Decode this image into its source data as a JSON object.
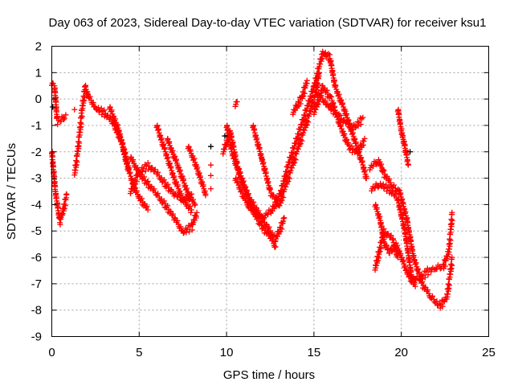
{
  "chart_data": {
    "type": "scatter",
    "title": "Day 063 of 2023, Sidereal Day-to-day VTEC variation (SDTVAR) for receiver ksu1",
    "xlabel": "GPS time / hours",
    "ylabel": "SDTVAR / TECUs",
    "xlim": [
      0,
      25
    ],
    "ylim": [
      -9,
      2
    ],
    "xticks": [
      "0",
      "5",
      "10",
      "15",
      "20",
      "25"
    ],
    "yticks": [
      "-9",
      "-8",
      "-7",
      "-6",
      "-5",
      "-4",
      "-3",
      "-2",
      "-1",
      "0",
      "1",
      "2"
    ],
    "grid": true,
    "marker": "+",
    "colors": {
      "main": "#ff0000",
      "secondary": "#000000"
    },
    "traces": [
      [
        [
          0,
          0.6
        ],
        [
          0.15,
          0.5
        ],
        [
          0.3,
          -0.8
        ],
        [
          0.5,
          -0.8
        ],
        [
          0.8,
          -0.6
        ]
      ],
      [
        [
          0,
          -2
        ],
        [
          0.2,
          -3.5
        ],
        [
          0.45,
          -4.6
        ],
        [
          0.6,
          -4.3
        ],
        [
          0.85,
          -3.6
        ]
      ],
      [
        [
          1.3,
          -2.8
        ],
        [
          1.5,
          -1.8
        ],
        [
          1.7,
          -0.5
        ],
        [
          1.9,
          0.5
        ],
        [
          2.1,
          0.1
        ]
      ],
      [
        [
          2.0,
          0.2
        ],
        [
          2.5,
          -0.3
        ],
        [
          3.0,
          -0.5
        ],
        [
          3.5,
          -0.9
        ],
        [
          4.0,
          -1.6
        ],
        [
          4.4,
          -2.6
        ]
      ],
      [
        [
          3.3,
          -0.3
        ],
        [
          3.8,
          -1.1
        ],
        [
          4.3,
          -2.5
        ],
        [
          4.8,
          -3.5
        ],
        [
          5.5,
          -4.2
        ]
      ],
      [
        [
          4.5,
          -2.2
        ],
        [
          5.0,
          -2.8
        ],
        [
          5.5,
          -3.2
        ],
        [
          6.0,
          -3.6
        ],
        [
          6.5,
          -4.0
        ],
        [
          7.0,
          -4.5
        ],
        [
          7.5,
          -5.0
        ],
        [
          8.0,
          -4.8
        ],
        [
          8.3,
          -4.3
        ]
      ],
      [
        [
          4.5,
          -3.5
        ],
        [
          5.0,
          -2.7
        ],
        [
          5.5,
          -2.5
        ],
        [
          6.0,
          -2.8
        ],
        [
          6.5,
          -3.2
        ],
        [
          7.0,
          -3.6
        ],
        [
          7.5,
          -3.8
        ],
        [
          8.0,
          -3.6
        ]
      ],
      [
        [
          6.0,
          -1.0
        ],
        [
          6.5,
          -2.0
        ],
        [
          7.0,
          -3.0
        ],
        [
          7.5,
          -3.8
        ],
        [
          8.0,
          -4.2
        ]
      ],
      [
        [
          6.6,
          -1.5
        ],
        [
          7.2,
          -2.5
        ],
        [
          7.8,
          -3.6
        ],
        [
          8.2,
          -4.0
        ]
      ],
      [
        [
          7.8,
          -1.8
        ],
        [
          8.2,
          -2.4
        ],
        [
          8.5,
          -3.0
        ],
        [
          8.8,
          -3.6
        ]
      ],
      [
        [
          10.0,
          -1.0
        ],
        [
          10.3,
          -2.0
        ],
        [
          10.8,
          -3.0
        ],
        [
          11.5,
          -4.2
        ],
        [
          12.0,
          -4.8
        ],
        [
          12.5,
          -5.2
        ],
        [
          12.8,
          -5.6
        ]
      ],
      [
        [
          9.8,
          -2.0
        ],
        [
          10.2,
          -1.2
        ],
        [
          10.6,
          -2.5
        ],
        [
          11.2,
          -3.6
        ],
        [
          12.0,
          -4.5
        ],
        [
          12.8,
          -5.3
        ],
        [
          13.3,
          -4.5
        ]
      ],
      [
        [
          10.5,
          -3.0
        ],
        [
          11.2,
          -4.0
        ],
        [
          12.0,
          -4.5
        ],
        [
          12.6,
          -4.2
        ],
        [
          13.1,
          -3.5
        ],
        [
          13.5,
          -2.5
        ],
        [
          14.0,
          -1.5
        ],
        [
          14.5,
          -0.5
        ],
        [
          15.0,
          0.5
        ]
      ],
      [
        [
          11.5,
          -1.0
        ],
        [
          12.0,
          -2.2
        ],
        [
          12.5,
          -3.5
        ],
        [
          13.0,
          -4.0
        ],
        [
          13.5,
          -3.0
        ],
        [
          14.0,
          -2.0
        ],
        [
          14.5,
          -1.0
        ],
        [
          15.0,
          0.0
        ],
        [
          15.3,
          1.0
        ]
      ],
      [
        [
          10.5,
          -0.2
        ],
        [
          10.6,
          -0.1
        ]
      ],
      [
        [
          13.8,
          -0.5
        ],
        [
          14.3,
          0.1
        ],
        [
          14.6,
          0.7
        ]
      ],
      [
        [
          15.0,
          0.5
        ],
        [
          15.5,
          1.8
        ],
        [
          15.9,
          1.6
        ],
        [
          16.2,
          0.5
        ],
        [
          16.8,
          -0.5
        ],
        [
          17.3,
          -1.5
        ],
        [
          17.8,
          -2.5
        ],
        [
          18.0,
          -3.0
        ]
      ],
      [
        [
          15.0,
          -0.5
        ],
        [
          15.5,
          0.5
        ],
        [
          16.0,
          0.0
        ],
        [
          16.5,
          -1.0
        ],
        [
          17.0,
          -1.8
        ],
        [
          17.5,
          -2.0
        ],
        [
          17.9,
          -1.5
        ]
      ],
      [
        [
          15.2,
          0.2
        ],
        [
          15.8,
          -0.2
        ],
        [
          16.5,
          -0.7
        ],
        [
          17.2,
          -1.1
        ],
        [
          17.8,
          -0.7
        ]
      ],
      [
        [
          18.2,
          -2.6
        ],
        [
          18.7,
          -2.3
        ],
        [
          19.0,
          -2.8
        ],
        [
          19.5,
          -3.3
        ],
        [
          19.9,
          -3.5
        ],
        [
          20.3,
          -4.5
        ],
        [
          20.7,
          -6.0
        ],
        [
          21.2,
          -7.0
        ],
        [
          21.7,
          -7.5
        ],
        [
          22.2,
          -7.8
        ],
        [
          22.6,
          -7.5
        ],
        [
          22.9,
          -6.0
        ]
      ],
      [
        [
          18.3,
          -3.4
        ],
        [
          18.8,
          -3.2
        ],
        [
          19.3,
          -3.4
        ],
        [
          19.8,
          -3.8
        ],
        [
          20.2,
          -5.0
        ],
        [
          20.6,
          -6.8
        ],
        [
          21.0,
          -6.8
        ],
        [
          21.5,
          -6.5
        ],
        [
          22.0,
          -6.4
        ],
        [
          22.4,
          -6.3
        ],
        [
          22.7,
          -5.8
        ],
        [
          22.9,
          -4.3
        ]
      ],
      [
        [
          18.5,
          -4.0
        ],
        [
          18.8,
          -4.6
        ],
        [
          19.0,
          -5.4
        ],
        [
          19.3,
          -5.8
        ],
        [
          19.7,
          -5.5
        ],
        [
          20.0,
          -6.0
        ],
        [
          20.3,
          -6.5
        ],
        [
          20.8,
          -7.1
        ]
      ],
      [
        [
          18.5,
          -6.4
        ],
        [
          18.7,
          -5.8
        ],
        [
          19.0,
          -5.0
        ],
        [
          19.5,
          -5.3
        ],
        [
          19.8,
          -6.0
        ]
      ],
      [
        [
          19.8,
          -0.4
        ],
        [
          20.0,
          -1.2
        ],
        [
          20.2,
          -1.8
        ],
        [
          20.4,
          -2.5
        ]
      ]
    ],
    "isolated_points": [
      [
        9.1,
        -2.5
      ],
      [
        9.1,
        -2.9
      ],
      [
        9.1,
        -3.4
      ],
      [
        1.3,
        -0.4
      ]
    ],
    "secondary_points": [
      [
        9.1,
        -1.8
      ],
      [
        9.9,
        -1.4
      ],
      [
        20.5,
        -2.0
      ],
      [
        0.05,
        -0.3
      ]
    ]
  }
}
